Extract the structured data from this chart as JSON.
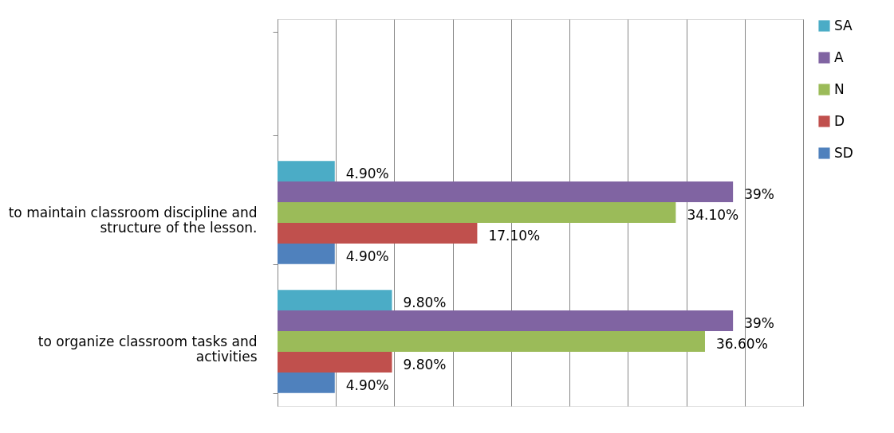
{
  "chart_data": {
    "type": "bar",
    "orientation": "horizontal",
    "categories": [
      null,
      "to maintain classroom discipline and structure of the lesson.",
      "to organize classroom tasks and activities"
    ],
    "series": [
      {
        "name": "SA",
        "color": "#4bacc6",
        "values": [
          null,
          4.9,
          9.8
        ],
        "value_labels": [
          null,
          "4.90%",
          "9.80%"
        ]
      },
      {
        "name": "A",
        "color": "#8064a2",
        "values": [
          null,
          39,
          39
        ],
        "value_labels": [
          null,
          "39%",
          "39%"
        ]
      },
      {
        "name": "N",
        "color": "#9bbb59",
        "values": [
          null,
          34.1,
          36.6
        ],
        "value_labels": [
          null,
          "34.10%",
          "36.60%"
        ]
      },
      {
        "name": "D",
        "color": "#c0504d",
        "values": [
          null,
          17.1,
          9.8
        ],
        "value_labels": [
          null,
          "17.10%",
          "9.80%"
        ]
      },
      {
        "name": "SD",
        "color": "#4f81bd",
        "values": [
          null,
          4.9,
          4.9
        ],
        "value_labels": [
          null,
          "4.90%",
          "4.90%"
        ]
      }
    ],
    "xlim": [
      0,
      45
    ],
    "xticks": [
      {
        "value": 0,
        "label": null
      },
      {
        "value": 5,
        "label": null
      },
      {
        "value": 10,
        "label": null
      },
      {
        "value": 15,
        "label": null
      },
      {
        "value": 20,
        "label": null
      },
      {
        "value": 25,
        "label": null
      },
      {
        "value": 30,
        "label": null
      },
      {
        "value": 35,
        "label": null
      },
      {
        "value": 40,
        "label": null
      },
      {
        "value": 45,
        "label": null
      }
    ],
    "grid": "x",
    "legend": "right",
    "tick_labels": "y"
  }
}
